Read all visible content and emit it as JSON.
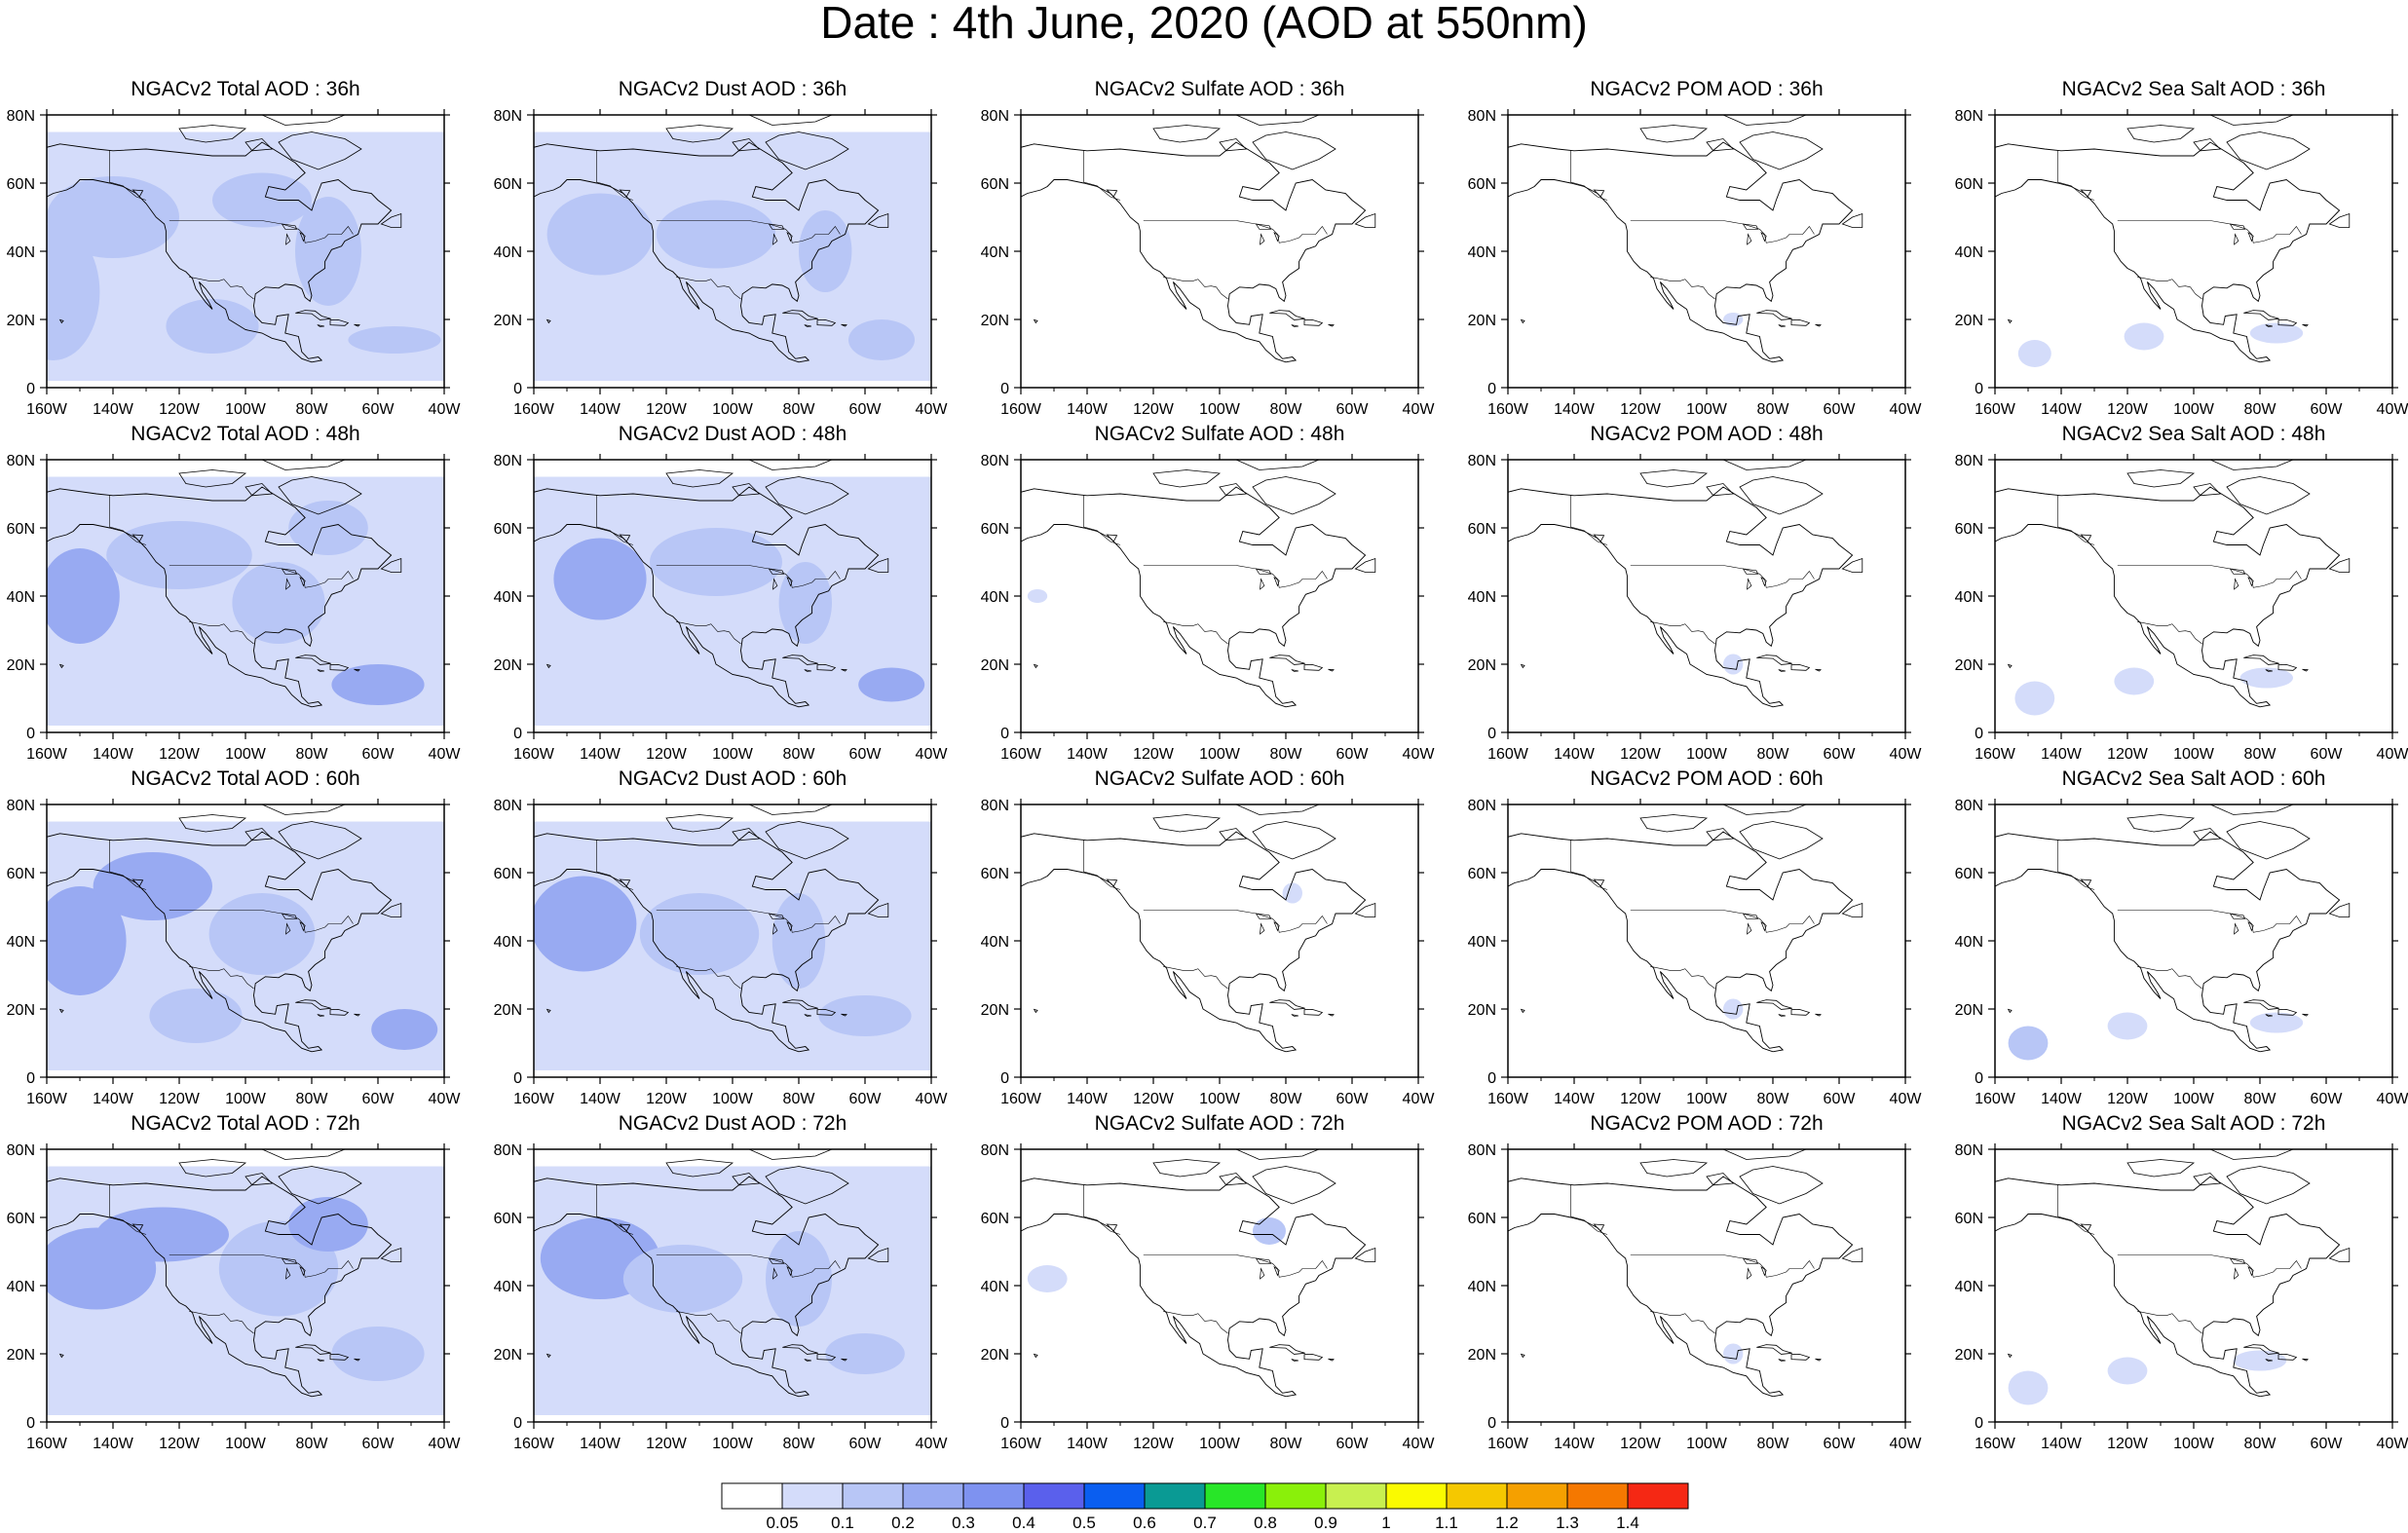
{
  "title": "Date : 4th June, 2020 (AOD at 550nm)",
  "columns": [
    {
      "id": "total",
      "panel_titles": [
        "NGACv2 Total AOD : 36h",
        "NGACv2 Total AOD : 48h",
        "NGACv2 Total AOD : 60h",
        "NGACv2 Total AOD : 72h"
      ]
    },
    {
      "id": "dust",
      "panel_titles": [
        "NGACv2 Dust AOD : 36h",
        "NGACv2 Dust AOD : 48h",
        "NGACv2 Dust AOD : 60h",
        "NGACv2 Dust AOD : 72h"
      ]
    },
    {
      "id": "sulfate",
      "panel_titles": [
        "NGACv2 Sulfate AOD : 36h",
        "NGACv2 Sulfate AOD : 48h",
        "NGACv2 Sulfate AOD : 60h",
        "NGACv2 Sulfate AOD : 72h"
      ]
    },
    {
      "id": "pom",
      "panel_titles": [
        "NGACv2 POM AOD : 36h",
        "NGACv2 POM AOD : 48h",
        "NGACv2 POM AOD : 60h",
        "NGACv2 POM AOD : 72h"
      ]
    },
    {
      "id": "seasalt",
      "panel_titles": [
        "NGACv2 Sea Salt AOD : 36h",
        "NGACv2 Sea Salt AOD : 48h",
        "NGACv2 Sea Salt AOD : 60h",
        "NGACv2 Sea Salt  AOD : 72h"
      ]
    }
  ],
  "chart_data": {
    "type": "heatmap",
    "map_region": {
      "lon_range": [
        -160,
        -40
      ],
      "lat_range": [
        0,
        80
      ]
    },
    "x_ticks": [
      "160W",
      "140W",
      "120W",
      "100W",
      "80W",
      "60W",
      "40W"
    ],
    "x_tick_values": [
      -160,
      -140,
      -120,
      -100,
      -80,
      -60,
      -40
    ],
    "y_ticks": [
      "0",
      "20N",
      "40N",
      "60N",
      "80N"
    ],
    "y_tick_values": [
      0,
      20,
      40,
      60,
      80
    ],
    "colorbar": {
      "labels": [
        "0.05",
        "0.1",
        "0.2",
        "0.3",
        "0.4",
        "0.5",
        "0.6",
        "0.7",
        "0.8",
        "0.9",
        "1",
        "1.1",
        "1.2",
        "1.3",
        "1.4"
      ],
      "colors": [
        "#ffffff",
        "#d4dcfa",
        "#b8c6f6",
        "#98aaf2",
        "#7e92f0",
        "#5a60ec",
        "#0a5ef0",
        "#0a9a94",
        "#28e628",
        "#8af00a",
        "#c8f050",
        "#fafa00",
        "#f5c800",
        "#f5a000",
        "#f57800",
        "#f52814"
      ]
    },
    "fields": {
      "total": [
        [
          {
            "lon": -158,
            "lat": 28,
            "rx": 14,
            "ry": 20,
            "level": 2
          },
          {
            "lon": -140,
            "lat": 50,
            "rx": 20,
            "ry": 12,
            "level": 2
          },
          {
            "lon": -110,
            "lat": 18,
            "rx": 14,
            "ry": 8,
            "level": 2
          },
          {
            "lon": -75,
            "lat": 40,
            "rx": 10,
            "ry": 16,
            "level": 2
          },
          {
            "lon": -55,
            "lat": 14,
            "rx": 14,
            "ry": 4,
            "level": 2
          },
          {
            "lon": -95,
            "lat": 55,
            "rx": 15,
            "ry": 8,
            "level": 2
          }
        ],
        [
          {
            "lon": -150,
            "lat": 40,
            "rx": 12,
            "ry": 14,
            "level": 3
          },
          {
            "lon": -120,
            "lat": 52,
            "rx": 22,
            "ry": 10,
            "level": 2
          },
          {
            "lon": -90,
            "lat": 38,
            "rx": 14,
            "ry": 12,
            "level": 2
          },
          {
            "lon": -60,
            "lat": 14,
            "rx": 14,
            "ry": 6,
            "level": 3
          },
          {
            "lon": -75,
            "lat": 60,
            "rx": 12,
            "ry": 8,
            "level": 2
          }
        ],
        [
          {
            "lon": -150,
            "lat": 40,
            "rx": 14,
            "ry": 16,
            "level": 3
          },
          {
            "lon": -128,
            "lat": 56,
            "rx": 18,
            "ry": 10,
            "level": 3
          },
          {
            "lon": -95,
            "lat": 42,
            "rx": 16,
            "ry": 12,
            "level": 2
          },
          {
            "lon": -115,
            "lat": 18,
            "rx": 14,
            "ry": 8,
            "level": 2
          },
          {
            "lon": -52,
            "lat": 14,
            "rx": 10,
            "ry": 6,
            "level": 3
          }
        ],
        [
          {
            "lon": -145,
            "lat": 45,
            "rx": 18,
            "ry": 12,
            "level": 3
          },
          {
            "lon": -125,
            "lat": 55,
            "rx": 20,
            "ry": 8,
            "level": 3
          },
          {
            "lon": -90,
            "lat": 45,
            "rx": 18,
            "ry": 14,
            "level": 2
          },
          {
            "lon": -75,
            "lat": 58,
            "rx": 12,
            "ry": 8,
            "level": 3
          },
          {
            "lon": -60,
            "lat": 20,
            "rx": 14,
            "ry": 8,
            "level": 2
          }
        ]
      ],
      "dust": [
        [
          {
            "lon": -140,
            "lat": 45,
            "rx": 16,
            "ry": 12,
            "level": 2
          },
          {
            "lon": -105,
            "lat": 45,
            "rx": 18,
            "ry": 10,
            "level": 2
          },
          {
            "lon": -72,
            "lat": 40,
            "rx": 8,
            "ry": 12,
            "level": 2
          },
          {
            "lon": -55,
            "lat": 14,
            "rx": 10,
            "ry": 6,
            "level": 2
          }
        ],
        [
          {
            "lon": -140,
            "lat": 45,
            "rx": 14,
            "ry": 12,
            "level": 3
          },
          {
            "lon": -105,
            "lat": 50,
            "rx": 20,
            "ry": 10,
            "level": 2
          },
          {
            "lon": -78,
            "lat": 38,
            "rx": 8,
            "ry": 12,
            "level": 2
          },
          {
            "lon": -52,
            "lat": 14,
            "rx": 10,
            "ry": 5,
            "level": 3
          }
        ],
        [
          {
            "lon": -145,
            "lat": 45,
            "rx": 16,
            "ry": 14,
            "level": 3
          },
          {
            "lon": -110,
            "lat": 42,
            "rx": 18,
            "ry": 12,
            "level": 2
          },
          {
            "lon": -80,
            "lat": 40,
            "rx": 8,
            "ry": 14,
            "level": 2
          },
          {
            "lon": -60,
            "lat": 18,
            "rx": 14,
            "ry": 6,
            "level": 2
          }
        ],
        [
          {
            "lon": -140,
            "lat": 48,
            "rx": 18,
            "ry": 12,
            "level": 3
          },
          {
            "lon": -115,
            "lat": 42,
            "rx": 18,
            "ry": 10,
            "level": 2
          },
          {
            "lon": -80,
            "lat": 42,
            "rx": 10,
            "ry": 14,
            "level": 2
          },
          {
            "lon": -60,
            "lat": 20,
            "rx": 12,
            "ry": 6,
            "level": 2
          }
        ]
      ],
      "sulfate": [
        [],
        [
          {
            "lon": -155,
            "lat": 40,
            "rx": 3,
            "ry": 2,
            "level": 1
          }
        ],
        [
          {
            "lon": -78,
            "lat": 54,
            "rx": 3,
            "ry": 3,
            "level": 1
          }
        ],
        [
          {
            "lon": -152,
            "lat": 42,
            "rx": 6,
            "ry": 4,
            "level": 1
          },
          {
            "lon": -85,
            "lat": 56,
            "rx": 5,
            "ry": 4,
            "level": 2
          }
        ]
      ],
      "pom": [
        [
          {
            "lon": -92,
            "lat": 20,
            "rx": 3,
            "ry": 2,
            "level": 1
          }
        ],
        [
          {
            "lon": -92,
            "lat": 20,
            "rx": 3,
            "ry": 3,
            "level": 1
          }
        ],
        [
          {
            "lon": -92,
            "lat": 20,
            "rx": 3,
            "ry": 3,
            "level": 1
          }
        ],
        [
          {
            "lon": -92,
            "lat": 20,
            "rx": 3,
            "ry": 3,
            "level": 1
          }
        ]
      ],
      "seasalt": [
        [
          {
            "lon": -148,
            "lat": 10,
            "rx": 5,
            "ry": 4,
            "level": 1
          },
          {
            "lon": -115,
            "lat": 15,
            "rx": 6,
            "ry": 4,
            "level": 1
          },
          {
            "lon": -75,
            "lat": 16,
            "rx": 8,
            "ry": 3,
            "level": 1
          }
        ],
        [
          {
            "lon": -148,
            "lat": 10,
            "rx": 6,
            "ry": 5,
            "level": 1
          },
          {
            "lon": -118,
            "lat": 15,
            "rx": 6,
            "ry": 4,
            "level": 1
          },
          {
            "lon": -78,
            "lat": 16,
            "rx": 8,
            "ry": 3,
            "level": 1
          }
        ],
        [
          {
            "lon": -150,
            "lat": 10,
            "rx": 6,
            "ry": 5,
            "level": 2
          },
          {
            "lon": -120,
            "lat": 15,
            "rx": 6,
            "ry": 4,
            "level": 1
          },
          {
            "lon": -75,
            "lat": 16,
            "rx": 8,
            "ry": 3,
            "level": 1
          }
        ],
        [
          {
            "lon": -150,
            "lat": 10,
            "rx": 6,
            "ry": 5,
            "level": 1
          },
          {
            "lon": -120,
            "lat": 15,
            "rx": 6,
            "ry": 4,
            "level": 1
          },
          {
            "lon": -80,
            "lat": 18,
            "rx": 8,
            "ry": 3,
            "level": 1
          }
        ]
      ]
    }
  }
}
